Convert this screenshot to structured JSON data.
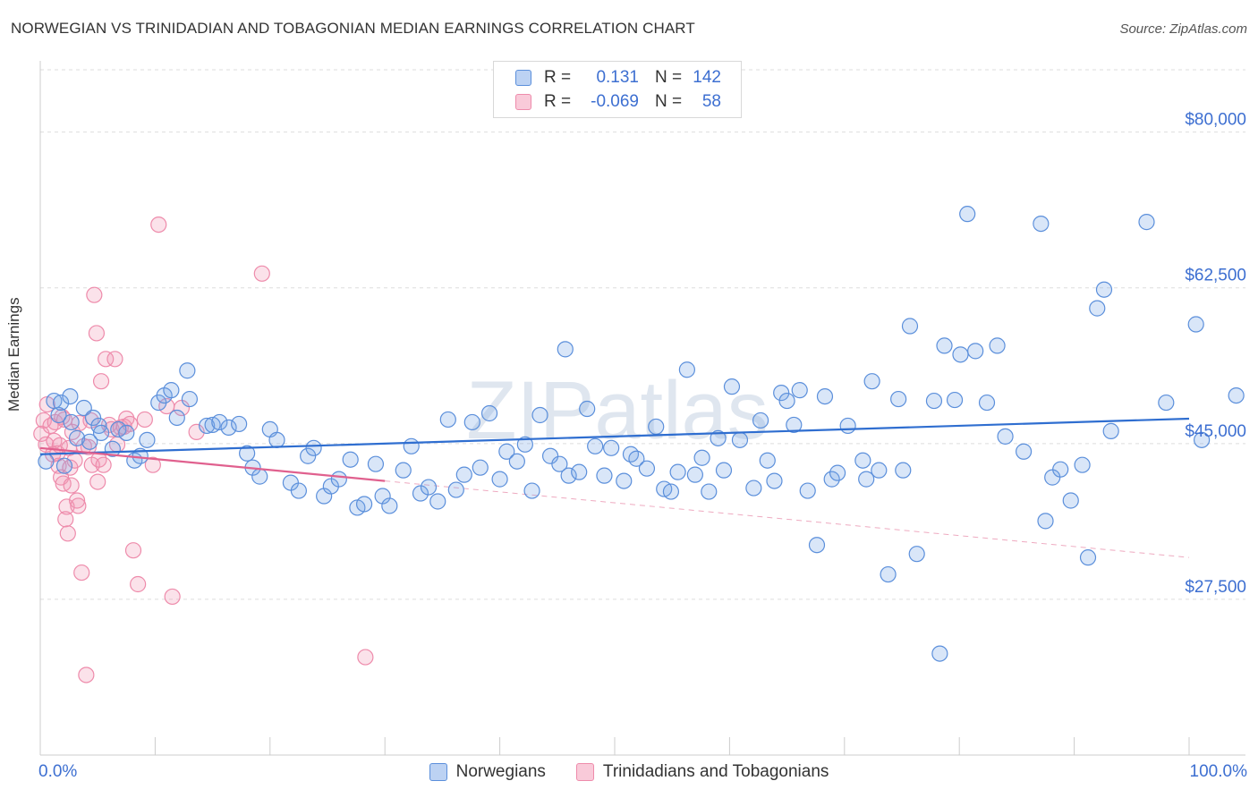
{
  "header": {
    "title": "NORWEGIAN VS TRINIDADIAN AND TOBAGONIAN MEDIAN EARNINGS CORRELATION CHART",
    "source": "Source: ZipAtlas.com"
  },
  "legend_top": {
    "rows": [
      {
        "r_label": "R =",
        "r_value": "0.131",
        "n_label": "N =",
        "n_value": "142"
      },
      {
        "r_label": "R =",
        "r_value": "-0.069",
        "n_label": "N =",
        "n_value": "58"
      }
    ]
  },
  "chart_data": {
    "type": "scatter",
    "title": "NORWEGIAN VS TRINIDADIAN AND TOBAGONIAN MEDIAN EARNINGS CORRELATION CHART",
    "xlabel": "",
    "ylabel": "Median Earnings",
    "xlim": [
      0,
      100
    ],
    "ylim": [
      10000,
      87000
    ],
    "x_tick_labels": [
      "0.0%",
      "100.0%"
    ],
    "y_ticks": [
      27500,
      45000,
      62500,
      80000
    ],
    "y_tick_labels": [
      "$27,500",
      "$45,000",
      "$62,500",
      "$80,000"
    ],
    "grid": true,
    "legend_placement": "bottom",
    "watermark": "ZIPatlas",
    "colors": {
      "norwegians": "#5b8fdb",
      "trinidadians": "#ee8bab",
      "norwegians_line": "#2f6ed0",
      "trinidadians_line": "#e0608e"
    },
    "series": [
      {
        "name": "Norwegians",
        "r": 0.131,
        "n": 142,
        "trend": {
          "x": [
            0,
            100
          ],
          "y": [
            43800,
            47800
          ]
        },
        "points": [
          [
            0.5,
            43000
          ],
          [
            1.2,
            49800
          ],
          [
            1.6,
            48200
          ],
          [
            1.8,
            49600
          ],
          [
            2.1,
            42500
          ],
          [
            2.6,
            50300
          ],
          [
            2.7,
            47400
          ],
          [
            3.2,
            45600
          ],
          [
            3.8,
            49000
          ],
          [
            4.3,
            45200
          ],
          [
            4.6,
            47900
          ],
          [
            5.1,
            47000
          ],
          [
            5.3,
            46200
          ],
          [
            6.3,
            44400
          ],
          [
            6.8,
            46600
          ],
          [
            7.5,
            46200
          ],
          [
            8.2,
            43100
          ],
          [
            8.7,
            43600
          ],
          [
            9.3,
            45400
          ],
          [
            10.3,
            49600
          ],
          [
            10.8,
            50400
          ],
          [
            11.4,
            51000
          ],
          [
            11.9,
            47900
          ],
          [
            12.8,
            53200
          ],
          [
            13.0,
            50000
          ],
          [
            14.5,
            47000
          ],
          [
            15.0,
            47100
          ],
          [
            15.6,
            47400
          ],
          [
            16.4,
            46800
          ],
          [
            17.3,
            47200
          ],
          [
            18.0,
            43900
          ],
          [
            18.5,
            42300
          ],
          [
            19.1,
            41300
          ],
          [
            20.0,
            46600
          ],
          [
            20.6,
            45400
          ],
          [
            21.8,
            40600
          ],
          [
            22.5,
            39700
          ],
          [
            23.3,
            43600
          ],
          [
            23.8,
            44500
          ],
          [
            24.7,
            39100
          ],
          [
            25.3,
            40200
          ],
          [
            26.0,
            41000
          ],
          [
            27.0,
            43200
          ],
          [
            27.6,
            37800
          ],
          [
            28.2,
            38200
          ],
          [
            29.2,
            42700
          ],
          [
            29.8,
            39100
          ],
          [
            30.4,
            38000
          ],
          [
            31.6,
            42000
          ],
          [
            32.3,
            44700
          ],
          [
            33.1,
            39400
          ],
          [
            33.8,
            40100
          ],
          [
            34.6,
            38500
          ],
          [
            35.5,
            47700
          ],
          [
            36.2,
            39800
          ],
          [
            36.9,
            41500
          ],
          [
            37.6,
            47400
          ],
          [
            38.3,
            42300
          ],
          [
            39.1,
            48400
          ],
          [
            40.0,
            41000
          ],
          [
            40.6,
            44100
          ],
          [
            41.5,
            43000
          ],
          [
            42.2,
            44900
          ],
          [
            42.8,
            39700
          ],
          [
            43.5,
            48200
          ],
          [
            44.4,
            43600
          ],
          [
            45.2,
            42700
          ],
          [
            45.7,
            55600
          ],
          [
            46.0,
            41400
          ],
          [
            46.9,
            41800
          ],
          [
            47.6,
            48900
          ],
          [
            48.3,
            44700
          ],
          [
            49.1,
            41400
          ],
          [
            49.7,
            44500
          ],
          [
            50.8,
            40800
          ],
          [
            51.4,
            43800
          ],
          [
            51.9,
            43300
          ],
          [
            52.8,
            42200
          ],
          [
            53.6,
            46900
          ],
          [
            54.3,
            39900
          ],
          [
            54.9,
            39600
          ],
          [
            55.5,
            41800
          ],
          [
            56.3,
            53300
          ],
          [
            57.0,
            41500
          ],
          [
            57.6,
            43400
          ],
          [
            58.2,
            39600
          ],
          [
            59.0,
            45600
          ],
          [
            59.5,
            42000
          ],
          [
            60.2,
            51400
          ],
          [
            60.9,
            45400
          ],
          [
            62.1,
            40000
          ],
          [
            62.7,
            47600
          ],
          [
            63.3,
            43100
          ],
          [
            63.9,
            40800
          ],
          [
            64.5,
            50700
          ],
          [
            65.0,
            49800
          ],
          [
            65.6,
            47100
          ],
          [
            66.1,
            51000
          ],
          [
            66.8,
            39700
          ],
          [
            67.6,
            33600
          ],
          [
            68.3,
            50300
          ],
          [
            68.9,
            41000
          ],
          [
            69.4,
            41700
          ],
          [
            70.3,
            47000
          ],
          [
            71.6,
            43100
          ],
          [
            71.9,
            41000
          ],
          [
            72.4,
            52000
          ],
          [
            73.0,
            42000
          ],
          [
            73.8,
            30300
          ],
          [
            74.7,
            50000
          ],
          [
            75.1,
            42000
          ],
          [
            75.7,
            58200
          ],
          [
            76.3,
            32600
          ],
          [
            77.8,
            49800
          ],
          [
            78.3,
            21400
          ],
          [
            78.7,
            56000
          ],
          [
            79.6,
            49900
          ],
          [
            80.1,
            55000
          ],
          [
            80.7,
            70800
          ],
          [
            81.4,
            55400
          ],
          [
            82.4,
            49600
          ],
          [
            83.3,
            56000
          ],
          [
            84.0,
            45800
          ],
          [
            85.6,
            44100
          ],
          [
            87.1,
            69700
          ],
          [
            87.5,
            36300
          ],
          [
            88.1,
            41200
          ],
          [
            88.8,
            42100
          ],
          [
            89.7,
            38600
          ],
          [
            90.7,
            42600
          ],
          [
            91.2,
            32200
          ],
          [
            92.0,
            60200
          ],
          [
            92.6,
            62300
          ],
          [
            93.2,
            46400
          ],
          [
            96.3,
            69900
          ],
          [
            98.0,
            49600
          ],
          [
            100.6,
            58400
          ],
          [
            101.1,
            45400
          ],
          [
            104.1,
            50400
          ]
        ]
      },
      {
        "name": "Trinidadians and Tobagonians",
        "r": -0.069,
        "n": 58,
        "trend": {
          "x": [
            0,
            30
          ],
          "y": [
            44500,
            40800
          ]
        },
        "trend_extension": {
          "x": [
            30,
            100
          ],
          "y": [
            40800,
            32200
          ]
        },
        "points": [
          [
            0.1,
            46100
          ],
          [
            0.3,
            47600
          ],
          [
            0.5,
            44900
          ],
          [
            0.6,
            49400
          ],
          [
            0.9,
            47000
          ],
          [
            1.1,
            43800
          ],
          [
            1.2,
            45300
          ],
          [
            1.3,
            47400
          ],
          [
            1.5,
            43900
          ],
          [
            1.6,
            42500
          ],
          [
            1.7,
            44800
          ],
          [
            1.8,
            41200
          ],
          [
            1.9,
            48000
          ],
          [
            2.0,
            40500
          ],
          [
            2.1,
            47700
          ],
          [
            2.2,
            36500
          ],
          [
            2.3,
            37900
          ],
          [
            2.4,
            34900
          ],
          [
            2.5,
            44500
          ],
          [
            2.6,
            42300
          ],
          [
            2.7,
            40300
          ],
          [
            2.8,
            46300
          ],
          [
            3.0,
            43100
          ],
          [
            3.2,
            38600
          ],
          [
            3.3,
            38000
          ],
          [
            3.4,
            47300
          ],
          [
            3.6,
            30500
          ],
          [
            3.8,
            44700
          ],
          [
            4.0,
            19000
          ],
          [
            4.2,
            44600
          ],
          [
            4.4,
            47600
          ],
          [
            4.5,
            42600
          ],
          [
            4.7,
            61700
          ],
          [
            4.9,
            57400
          ],
          [
            5.0,
            40700
          ],
          [
            5.1,
            43200
          ],
          [
            5.3,
            52000
          ],
          [
            5.5,
            42600
          ],
          [
            5.7,
            54500
          ],
          [
            6.0,
            47100
          ],
          [
            6.2,
            46600
          ],
          [
            6.5,
            54500
          ],
          [
            6.7,
            44900
          ],
          [
            7.0,
            46800
          ],
          [
            7.3,
            46900
          ],
          [
            7.5,
            47800
          ],
          [
            7.8,
            47200
          ],
          [
            8.1,
            33000
          ],
          [
            8.5,
            29200
          ],
          [
            9.1,
            47700
          ],
          [
            9.8,
            42600
          ],
          [
            10.3,
            69600
          ],
          [
            11.0,
            49200
          ],
          [
            11.5,
            27800
          ],
          [
            12.3,
            49000
          ],
          [
            13.6,
            46300
          ],
          [
            19.3,
            64100
          ],
          [
            28.3,
            21000
          ]
        ]
      }
    ]
  }
}
